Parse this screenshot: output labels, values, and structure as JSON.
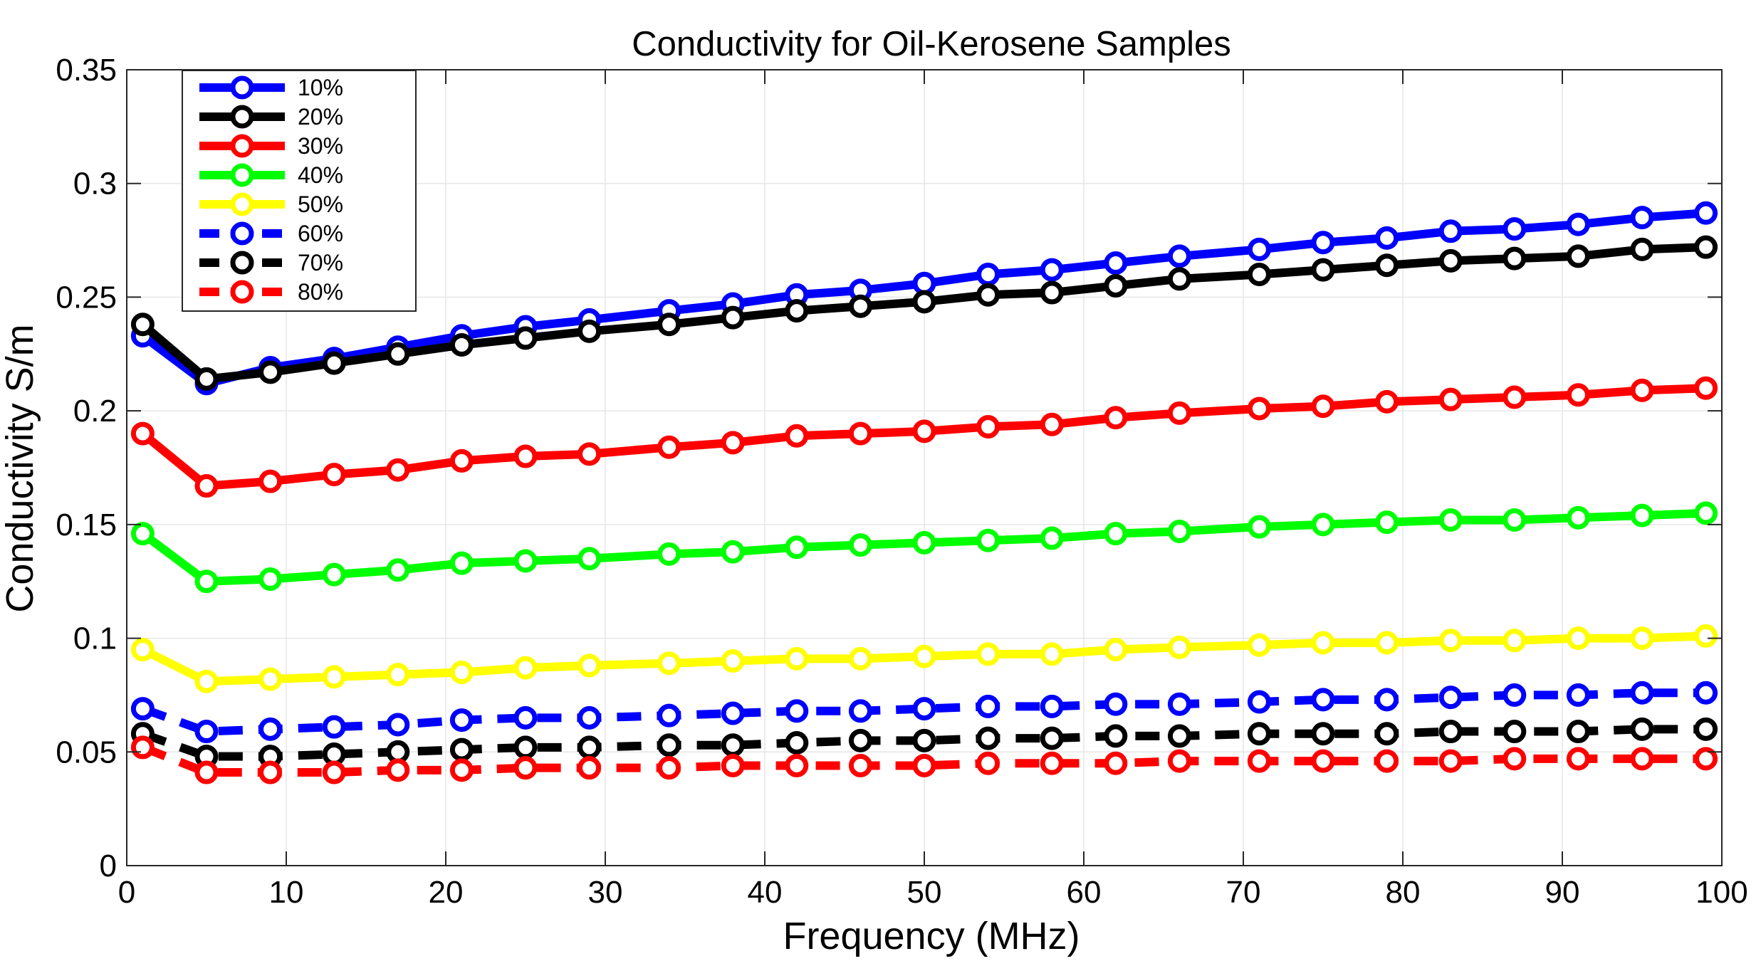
{
  "chart_data": {
    "type": "line",
    "title": "Conductivity for Oil-Kerosene Samples",
    "xlabel": "Frequency (MHz)",
    "ylabel": "Conductivity S/m",
    "xlim": [
      0,
      100
    ],
    "ylim": [
      0,
      0.35
    ],
    "xticks": [
      0,
      10,
      20,
      30,
      40,
      50,
      60,
      70,
      80,
      90,
      100
    ],
    "yticks": [
      0,
      0.05,
      0.1,
      0.15,
      0.2,
      0.25,
      0.3,
      0.35
    ],
    "xtick_labels": [
      "0",
      "10",
      "20",
      "30",
      "40",
      "50",
      "60",
      "70",
      "80",
      "90",
      "100"
    ],
    "ytick_labels": [
      "0",
      "0.05",
      "0.1",
      "0.15",
      "0.2",
      "0.25",
      "0.3",
      "0.35"
    ],
    "grid": true,
    "legend_position": "top-left",
    "marker": "circle",
    "x": [
      1,
      5,
      9,
      13,
      17,
      21,
      25,
      29,
      34,
      38,
      42,
      46,
      50,
      54,
      58,
      62,
      66,
      71,
      75,
      79,
      83,
      87,
      91,
      95,
      99
    ],
    "series": [
      {
        "name": "10%",
        "color": "#0000ff",
        "dash": "solid",
        "values": [
          0.233,
          0.212,
          0.219,
          0.223,
          0.228,
          0.233,
          0.237,
          0.24,
          0.244,
          0.247,
          0.251,
          0.253,
          0.256,
          0.26,
          0.262,
          0.265,
          0.268,
          0.271,
          0.274,
          0.276,
          0.279,
          0.28,
          0.282,
          0.285,
          0.287
        ]
      },
      {
        "name": "20%",
        "color": "#000000",
        "dash": "solid",
        "values": [
          0.238,
          0.214,
          0.217,
          0.221,
          0.225,
          0.229,
          0.232,
          0.235,
          0.238,
          0.241,
          0.244,
          0.246,
          0.248,
          0.251,
          0.252,
          0.255,
          0.258,
          0.26,
          0.262,
          0.264,
          0.266,
          0.267,
          0.268,
          0.271,
          0.272
        ]
      },
      {
        "name": "30%",
        "color": "#ff0000",
        "dash": "solid",
        "values": [
          0.19,
          0.167,
          0.169,
          0.172,
          0.174,
          0.178,
          0.18,
          0.181,
          0.184,
          0.186,
          0.189,
          0.19,
          0.191,
          0.193,
          0.194,
          0.197,
          0.199,
          0.201,
          0.202,
          0.204,
          0.205,
          0.206,
          0.207,
          0.209,
          0.21
        ]
      },
      {
        "name": "40%",
        "color": "#00ff00",
        "dash": "solid",
        "values": [
          0.146,
          0.125,
          0.126,
          0.128,
          0.13,
          0.133,
          0.134,
          0.135,
          0.137,
          0.138,
          0.14,
          0.141,
          0.142,
          0.143,
          0.144,
          0.146,
          0.147,
          0.149,
          0.15,
          0.151,
          0.152,
          0.152,
          0.153,
          0.154,
          0.155
        ]
      },
      {
        "name": "50%",
        "color": "#ffff00",
        "dash": "solid",
        "values": [
          0.095,
          0.081,
          0.082,
          0.083,
          0.084,
          0.085,
          0.087,
          0.088,
          0.089,
          0.09,
          0.091,
          0.091,
          0.092,
          0.093,
          0.093,
          0.095,
          0.096,
          0.097,
          0.098,
          0.098,
          0.099,
          0.099,
          0.1,
          0.1,
          0.101
        ]
      },
      {
        "name": "60%",
        "color": "#0000ff",
        "dash": "dashed",
        "values": [
          0.069,
          0.059,
          0.06,
          0.061,
          0.062,
          0.064,
          0.065,
          0.065,
          0.066,
          0.067,
          0.068,
          0.068,
          0.069,
          0.07,
          0.07,
          0.071,
          0.071,
          0.072,
          0.073,
          0.073,
          0.074,
          0.075,
          0.075,
          0.076,
          0.076
        ]
      },
      {
        "name": "70%",
        "color": "#000000",
        "dash": "dashed",
        "values": [
          0.058,
          0.048,
          0.048,
          0.049,
          0.05,
          0.051,
          0.052,
          0.052,
          0.053,
          0.053,
          0.054,
          0.055,
          0.055,
          0.056,
          0.056,
          0.057,
          0.057,
          0.058,
          0.058,
          0.058,
          0.059,
          0.059,
          0.059,
          0.06,
          0.06
        ]
      },
      {
        "name": "80%",
        "color": "#ff0000",
        "dash": "dashed",
        "values": [
          0.052,
          0.041,
          0.041,
          0.041,
          0.042,
          0.042,
          0.043,
          0.043,
          0.043,
          0.044,
          0.044,
          0.044,
          0.044,
          0.045,
          0.045,
          0.045,
          0.046,
          0.046,
          0.046,
          0.046,
          0.046,
          0.047,
          0.047,
          0.047,
          0.047
        ]
      }
    ]
  }
}
